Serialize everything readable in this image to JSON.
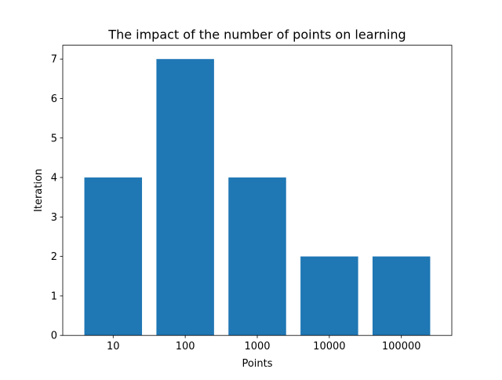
{
  "chart_data": {
    "type": "bar",
    "title": "The impact of the number of points on learning",
    "xlabel": "Points",
    "ylabel": "Iteration",
    "categories": [
      "10",
      "100",
      "1000",
      "10000",
      "100000"
    ],
    "values": [
      4,
      7,
      4,
      2,
      2
    ],
    "ylim": [
      0,
      7.35
    ],
    "yticks": [
      "0",
      "1",
      "2",
      "3",
      "4",
      "5",
      "6",
      "7"
    ],
    "grid": false,
    "legend": "none",
    "bar_color": "#1f77b4"
  }
}
